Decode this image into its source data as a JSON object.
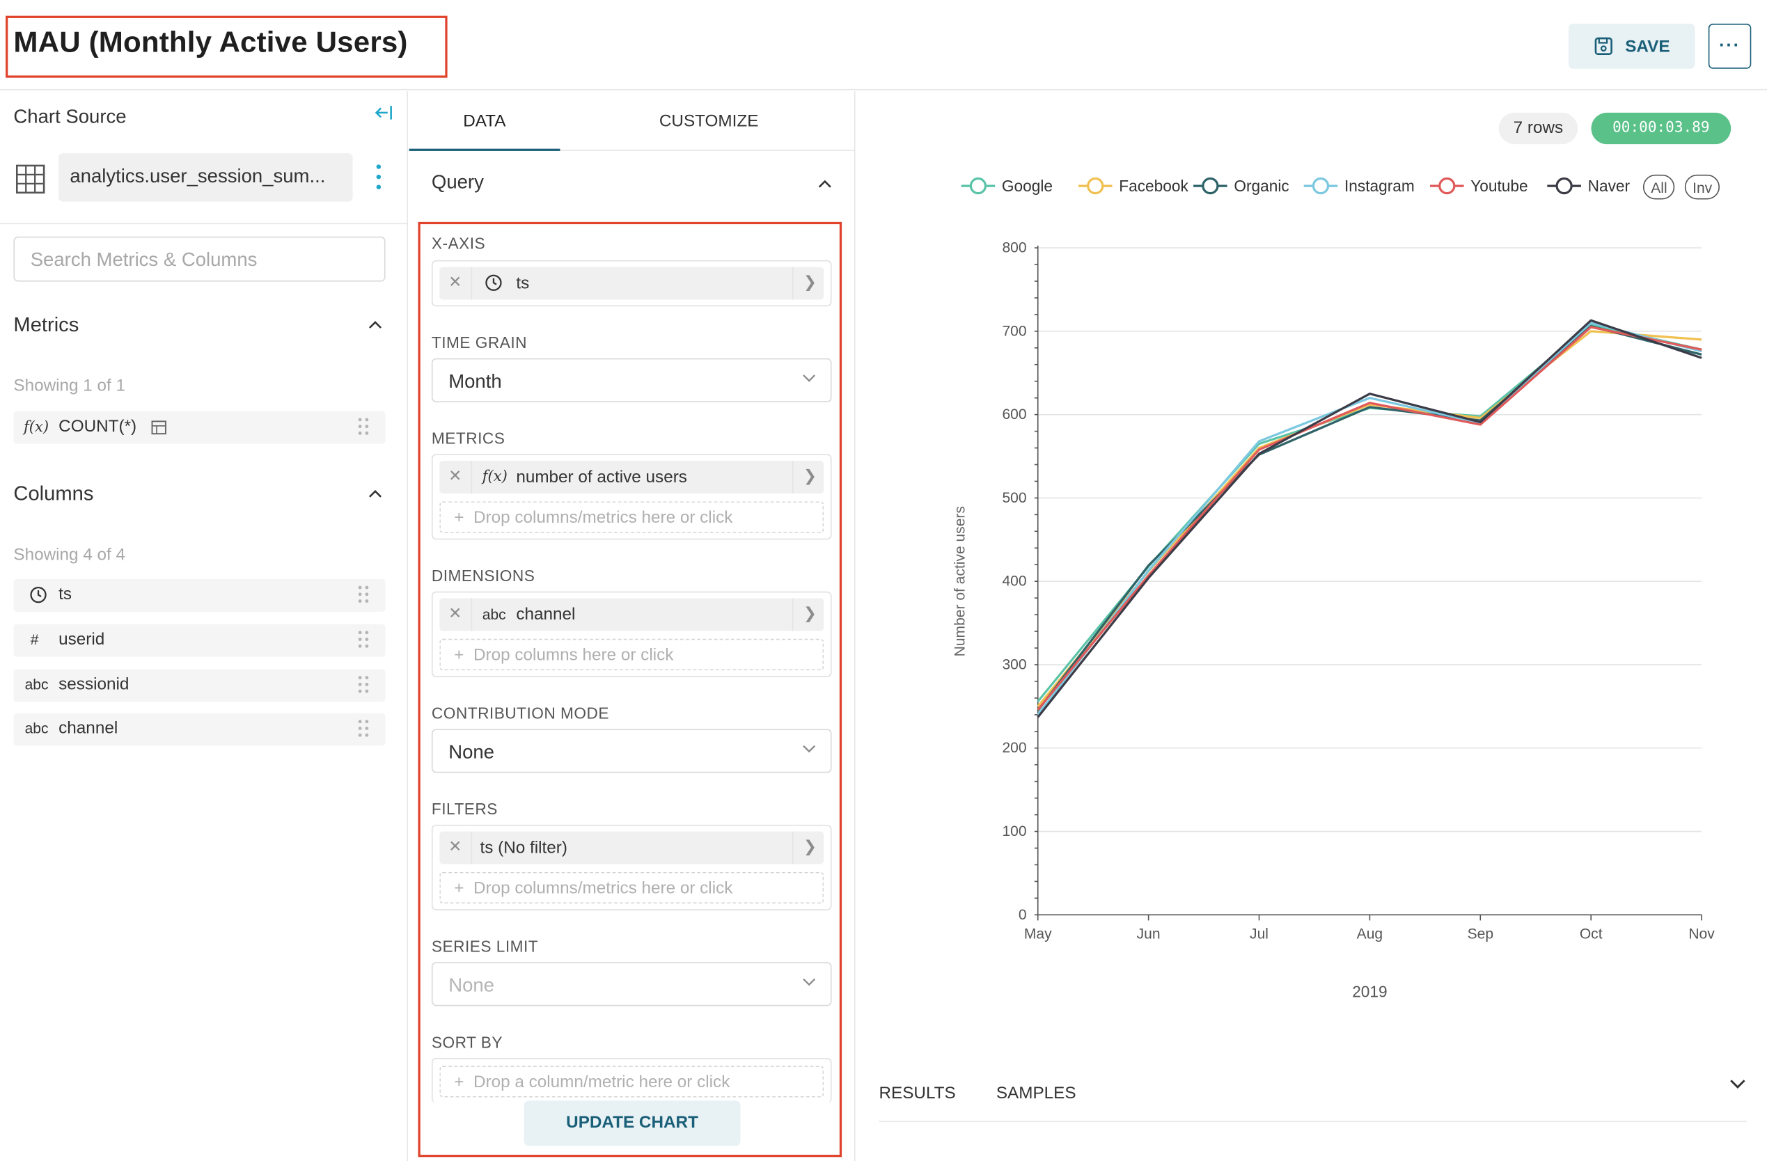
{
  "header": {
    "title": "MAU (Monthly Active Users)",
    "save_label": "SAVE",
    "more_label": "···"
  },
  "left_panel": {
    "chart_source_label": "Chart Source",
    "dataset_name": "analytics.user_session_sum...",
    "search_placeholder": "Search Metrics & Columns",
    "metrics": {
      "heading": "Metrics",
      "showing": "Showing 1 of 1",
      "items": [
        {
          "icon": "function-icon",
          "type_label": "f(x)",
          "label": "COUNT(*)"
        }
      ]
    },
    "columns": {
      "heading": "Columns",
      "showing": "Showing 4 of 4",
      "items": [
        {
          "icon": "clock-icon",
          "type_label": "",
          "label": "ts"
        },
        {
          "icon": "hash-icon",
          "type_label": "#",
          "label": "userid"
        },
        {
          "icon": "string-icon",
          "type_label": "abc",
          "label": "sessionid"
        },
        {
          "icon": "string-icon",
          "type_label": "abc",
          "label": "channel"
        }
      ]
    }
  },
  "middle_panel": {
    "tabs": [
      {
        "label": "DATA",
        "active": true
      },
      {
        "label": "CUSTOMIZE",
        "active": false
      }
    ],
    "query_heading": "Query",
    "x_axis": {
      "label": "X-AXIS",
      "value": "ts"
    },
    "time_grain": {
      "label": "TIME GRAIN",
      "value": "Month"
    },
    "metrics": {
      "label": "METRICS",
      "value_prefix": "f(x)",
      "value": "number of active users",
      "drop_hint": "Drop columns/metrics here or click"
    },
    "dimensions": {
      "label": "DIMENSIONS",
      "value_prefix": "abc",
      "value": "channel",
      "drop_hint": "Drop columns here or click"
    },
    "contribution_mode": {
      "label": "CONTRIBUTION MODE",
      "value": "None"
    },
    "filters": {
      "label": "FILTERS",
      "value": "ts (No filter)",
      "drop_hint": "Drop columns/metrics here or click"
    },
    "series_limit": {
      "label": "SERIES LIMIT",
      "value": "None"
    },
    "sort_by": {
      "label": "SORT BY",
      "drop_hint": "Drop a column/metric here or click"
    },
    "update_button": "UPDATE CHART"
  },
  "right_panel": {
    "rows_badge": "7 rows",
    "timer": "00:00:03.89",
    "legend_all": "All",
    "legend_inv": "Inv",
    "results_tabs": [
      "RESULTS",
      "SAMPLES"
    ]
  },
  "chart_data": {
    "type": "line",
    "ylabel": "Number of active users",
    "xlabel": "2019",
    "categories": [
      "May",
      "Jun",
      "Jul",
      "Aug",
      "Sep",
      "Oct",
      "Nov"
    ],
    "ylim": [
      0,
      800
    ],
    "yticks": [
      0,
      100,
      200,
      300,
      400,
      500,
      600,
      700,
      800
    ],
    "grid": true,
    "legend_position": "top-right",
    "series": [
      {
        "name": "Google",
        "color": "#5ac4a8",
        "values": [
          256,
          418,
          565,
          608,
          598,
          708,
          678
        ]
      },
      {
        "name": "Facebook",
        "color": "#f0c050",
        "values": [
          250,
          412,
          560,
          612,
          596,
          700,
          690
        ]
      },
      {
        "name": "Organic",
        "color": "#2e6368",
        "values": [
          245,
          419,
          552,
          609,
          593,
          706,
          672
        ]
      },
      {
        "name": "Instagram",
        "color": "#7cc8e0",
        "values": [
          240,
          413,
          568,
          620,
          590,
          710,
          676
        ]
      },
      {
        "name": "Youtube",
        "color": "#e05a5a",
        "values": [
          246,
          407,
          558,
          614,
          588,
          705,
          678
        ]
      },
      {
        "name": "Naver",
        "color": "#3c3c48",
        "values": [
          237,
          404,
          553,
          625,
          591,
          713,
          668
        ]
      }
    ]
  }
}
